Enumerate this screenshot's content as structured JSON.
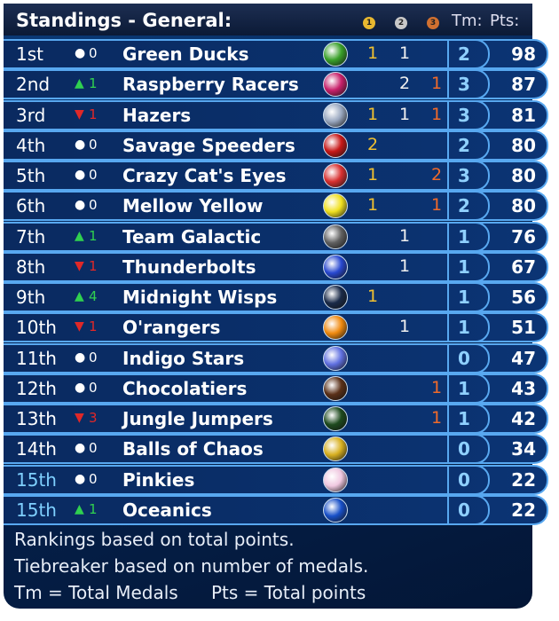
{
  "header": {
    "title": "Standings - General:",
    "medals": [
      "1",
      "2",
      "3"
    ],
    "total_medals": "Tm:",
    "points": "Pts:"
  },
  "table": {
    "rows": [
      {
        "rank": "1st",
        "trend": "same",
        "change": 0,
        "team": "Green Ducks",
        "marble": "#3aa02a",
        "gold": 1,
        "silver": 1,
        "bronze": null,
        "total": 2,
        "points": 98
      },
      {
        "rank": "2nd",
        "trend": "up",
        "change": 1,
        "team": "Raspberry Racers",
        "marble": "#c8206a",
        "gold": null,
        "silver": 2,
        "bronze": 1,
        "total": 3,
        "points": 87
      },
      {
        "rank": "3rd",
        "trend": "down",
        "change": 1,
        "team": "Hazers",
        "marble": "#9aa8c0",
        "gold": 1,
        "silver": 1,
        "bronze": 1,
        "total": 3,
        "points": 81
      },
      {
        "rank": "4th",
        "trend": "same",
        "change": 0,
        "team": "Savage Speeders",
        "marble": "#c81818",
        "gold": 2,
        "silver": null,
        "bronze": null,
        "total": 2,
        "points": 80
      },
      {
        "rank": "5th",
        "trend": "same",
        "change": 0,
        "team": "Crazy Cat's Eyes",
        "marble": "#d83030",
        "gold": 1,
        "silver": null,
        "bronze": 2,
        "total": 3,
        "points": 80
      },
      {
        "rank": "6th",
        "trend": "same",
        "change": 0,
        "team": "Mellow Yellow",
        "marble": "#f0e020",
        "gold": 1,
        "silver": null,
        "bronze": 1,
        "total": 2,
        "points": 80
      },
      {
        "rank": "7th",
        "trend": "up",
        "change": 1,
        "team": "Team Galactic",
        "marble": "#606060",
        "gold": null,
        "silver": 1,
        "bronze": null,
        "total": 1,
        "points": 76
      },
      {
        "rank": "8th",
        "trend": "down",
        "change": 1,
        "team": "Thunderbolts",
        "marble": "#2848d0",
        "gold": null,
        "silver": 1,
        "bronze": null,
        "total": 1,
        "points": 67
      },
      {
        "rank": "9th",
        "trend": "up",
        "change": 4,
        "team": "Midnight Wisps",
        "marble": "#1a2a48",
        "gold": 1,
        "silver": null,
        "bronze": null,
        "total": 1,
        "points": 56
      },
      {
        "rank": "10th",
        "trend": "down",
        "change": 1,
        "team": "O'rangers",
        "marble": "#f08a10",
        "gold": null,
        "silver": 1,
        "bronze": null,
        "total": 1,
        "points": 51
      },
      {
        "rank": "11th",
        "trend": "same",
        "change": 0,
        "team": "Indigo Stars",
        "marble": "#6070e0",
        "gold": null,
        "silver": null,
        "bronze": null,
        "total": 0,
        "points": 47
      },
      {
        "rank": "12th",
        "trend": "same",
        "change": 0,
        "team": "Chocolatiers",
        "marble": "#5a3018",
        "gold": null,
        "silver": null,
        "bronze": 1,
        "total": 1,
        "points": 43
      },
      {
        "rank": "13th",
        "trend": "down",
        "change": 3,
        "team": "Jungle Jumpers",
        "marble": "#1e4a1e",
        "gold": null,
        "silver": null,
        "bronze": 1,
        "total": 1,
        "points": 42
      },
      {
        "rank": "14th",
        "trend": "same",
        "change": 0,
        "team": "Balls of Chaos",
        "marble": "#d8b020",
        "gold": null,
        "silver": null,
        "bronze": null,
        "total": 0,
        "points": 34
      },
      {
        "rank": "15th",
        "trend": "same",
        "change": 0,
        "team": "Pinkies",
        "marble": "#f0c8e0",
        "gold": null,
        "silver": null,
        "bronze": null,
        "total": 0,
        "points": 22
      },
      {
        "rank": "15th",
        "trend": "up",
        "change": 1,
        "team": "Oceanics",
        "marble": "#1850c8",
        "gold": null,
        "silver": null,
        "bronze": null,
        "total": 0,
        "points": 22
      }
    ]
  },
  "footer": {
    "lines": [
      "Rankings based on total points.",
      "Tiebreaker based on number of medals."
    ],
    "legend": [
      "Tm = Total Medals",
      "Pts = Total points"
    ]
  }
}
